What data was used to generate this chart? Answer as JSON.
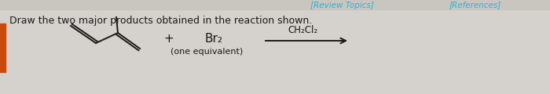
{
  "background_color": "#d5d1cc",
  "header_strip_color": "#c9c5bf",
  "title_text": "Draw the two major products obtained in the reaction shown.",
  "title_fontsize": 9.0,
  "title_color": "#1a1a1a",
  "review_topics_text": "[Review Topics]",
  "review_topics_color": "#29b6d6",
  "references_text": "[References]",
  "references_color": "#29b6d6",
  "br2_text": "Br₂",
  "ch2cl2_text": "CH₂Cl₂",
  "one_equiv_text": "(one equivalent)",
  "plus_text": "+",
  "orange_bar_color": "#c84b0a",
  "line_color": "#1a1a1a",
  "arrow_color": "#1a1a1a",
  "header_fontsize": 7.5,
  "body_fontsize": 10.0,
  "small_fontsize": 8.0
}
